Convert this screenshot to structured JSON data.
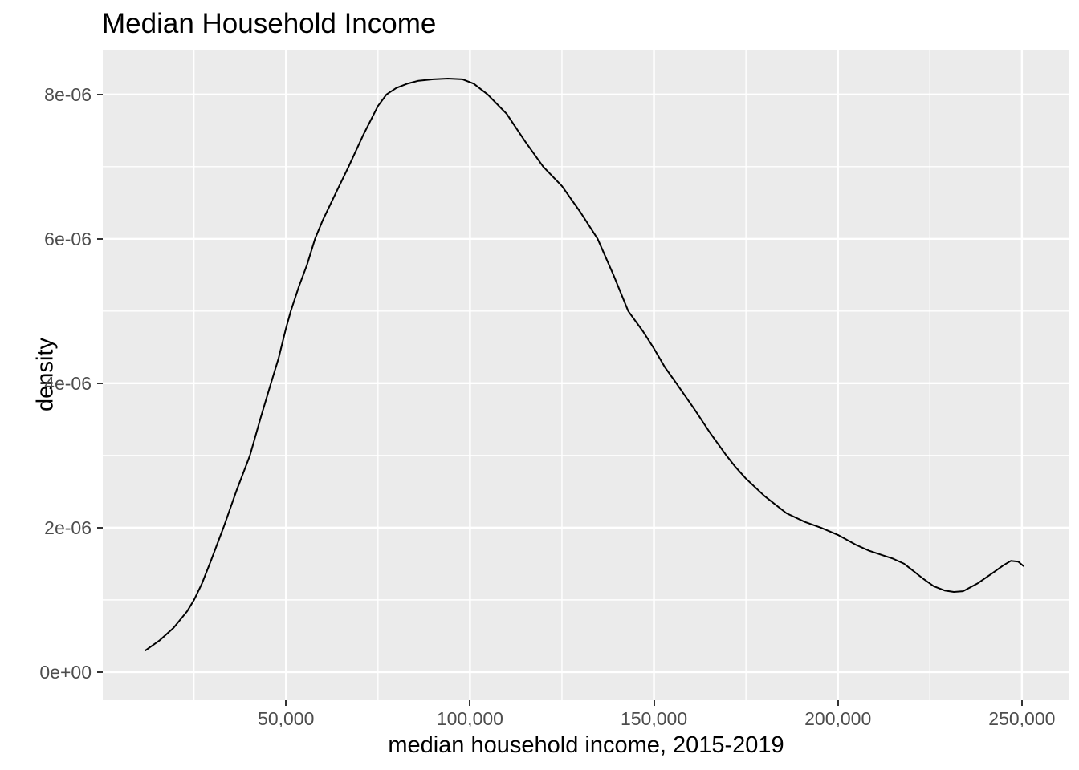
{
  "title": "Median Household Income",
  "x_axis": {
    "label": "median household income, 2015-2019",
    "tick_labels": [
      "50,000",
      "100,000",
      "150,000",
      "200,000",
      "250,000"
    ]
  },
  "y_axis": {
    "label": "density",
    "tick_labels": [
      "0e+00",
      "2e-06",
      "4e-06",
      "6e-06",
      "8e-06"
    ]
  },
  "colors": {
    "panel_background": "#EBEBEB",
    "gridline": "#FFFFFF",
    "curve": "#000000",
    "tick_mark": "#333333",
    "tick_label": "#4D4D4D",
    "title_text": "#000000",
    "page_background": "#FFFFFF"
  },
  "chart_data": {
    "type": "line",
    "title": "Median Household Income",
    "xlabel": "median household income, 2015-2019",
    "ylabel": "density",
    "grid": true,
    "legend_position": "none",
    "x_range": [
      200,
      262900
    ],
    "y_range": [
      -3.9e-07,
      8.62e-06
    ],
    "x_major_gridlines": [
      50000,
      100000,
      150000,
      200000,
      250000
    ],
    "x_minor_gridlines": [
      25000,
      75000,
      125000,
      175000,
      225000
    ],
    "y_major_gridlines": [
      0,
      2e-06,
      4e-06,
      6e-06,
      8e-06
    ],
    "y_minor_gridlines": [
      1e-06,
      3e-06,
      5e-06,
      7e-06
    ],
    "x_ticks": [
      {
        "value": 50000,
        "label": "50,000"
      },
      {
        "value": 100000,
        "label": "100,000"
      },
      {
        "value": 150000,
        "label": "150,000"
      },
      {
        "value": 200000,
        "label": "200,000"
      },
      {
        "value": 250000,
        "label": "250,000"
      }
    ],
    "y_ticks": [
      {
        "value": 0,
        "label": "0e+00"
      },
      {
        "value": 2e-06,
        "label": "2e-06"
      },
      {
        "value": 4e-06,
        "label": "4e-06"
      },
      {
        "value": 6e-06,
        "label": "6e-06"
      },
      {
        "value": 8e-06,
        "label": "8e-06"
      }
    ],
    "series": [
      {
        "name": "density",
        "points": [
          [
            11800,
            3e-07
          ],
          [
            15700,
            4.4e-07
          ],
          [
            19400,
            6.1e-07
          ],
          [
            23100,
            8.4e-07
          ],
          [
            25000,
            1e-06
          ],
          [
            27100,
            1.22e-06
          ],
          [
            29500,
            1.53e-06
          ],
          [
            33000,
            2e-06
          ],
          [
            36600,
            2.52e-06
          ],
          [
            40200,
            3e-06
          ],
          [
            43100,
            3.52e-06
          ],
          [
            45900,
            4e-06
          ],
          [
            48000,
            4.35e-06
          ],
          [
            50000,
            4.76e-06
          ],
          [
            51300,
            5e-06
          ],
          [
            53500,
            5.34e-06
          ],
          [
            55700,
            5.64e-06
          ],
          [
            57900,
            6e-06
          ],
          [
            60000,
            6.26e-06
          ],
          [
            63500,
            6.63e-06
          ],
          [
            67000,
            7e-06
          ],
          [
            71000,
            7.44e-06
          ],
          [
            75000,
            7.84e-06
          ],
          [
            77300,
            8e-06
          ],
          [
            80000,
            8.09e-06
          ],
          [
            83000,
            8.15e-06
          ],
          [
            86000,
            8.19e-06
          ],
          [
            90000,
            8.21e-06
          ],
          [
            94000,
            8.22e-06
          ],
          [
            98000,
            8.21e-06
          ],
          [
            101000,
            8.15e-06
          ],
          [
            104800,
            8e-06
          ],
          [
            110000,
            7.73e-06
          ],
          [
            115000,
            7.35e-06
          ],
          [
            119900,
            7e-06
          ],
          [
            125000,
            6.73e-06
          ],
          [
            130000,
            6.37e-06
          ],
          [
            134700,
            6e-06
          ],
          [
            139000,
            5.5e-06
          ],
          [
            143000,
            5e-06
          ],
          [
            147000,
            4.72e-06
          ],
          [
            150000,
            4.48e-06
          ],
          [
            153000,
            4.22e-06
          ],
          [
            156100,
            4e-06
          ],
          [
            161000,
            3.64e-06
          ],
          [
            165300,
            3.31e-06
          ],
          [
            169700,
            3e-06
          ],
          [
            172000,
            2.85e-06
          ],
          [
            175000,
            2.68e-06
          ],
          [
            180000,
            2.44e-06
          ],
          [
            186000,
            2.2e-06
          ],
          [
            191000,
            2.08e-06
          ],
          [
            195400,
            2e-06
          ],
          [
            200000,
            1.9e-06
          ],
          [
            205000,
            1.76e-06
          ],
          [
            208500,
            1.68e-06
          ],
          [
            212000,
            1.62e-06
          ],
          [
            215000,
            1.57e-06
          ],
          [
            218000,
            1.5e-06
          ],
          [
            220000,
            1.42e-06
          ],
          [
            223000,
            1.3e-06
          ],
          [
            226000,
            1.19e-06
          ],
          [
            229000,
            1.13e-06
          ],
          [
            231500,
            1.11e-06
          ],
          [
            234000,
            1.12e-06
          ],
          [
            238000,
            1.23e-06
          ],
          [
            242000,
            1.37e-06
          ],
          [
            245000,
            1.48e-06
          ],
          [
            247000,
            1.54e-06
          ],
          [
            249000,
            1.53e-06
          ],
          [
            250400,
            1.47e-06
          ]
        ]
      }
    ]
  }
}
